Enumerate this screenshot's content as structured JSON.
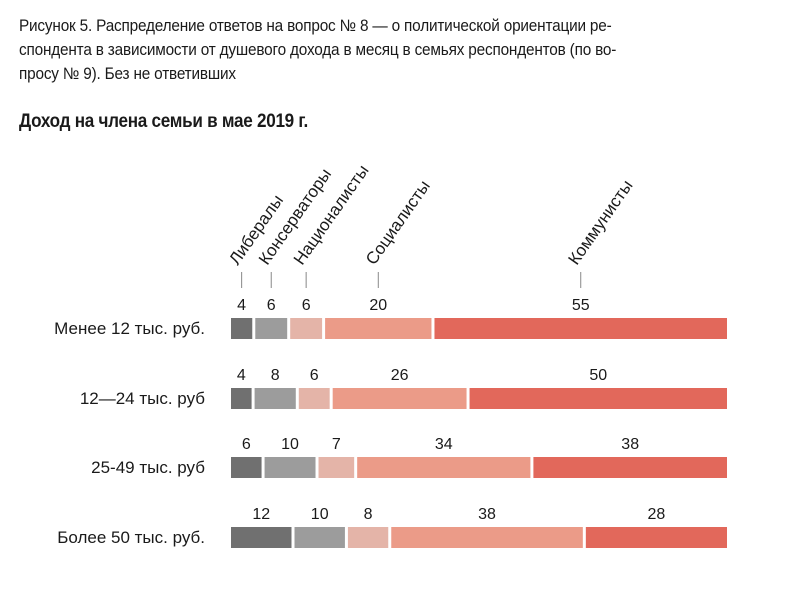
{
  "caption": "Рисунок 5. Распределение ответов на вопрос № 8 — о политической ориентации ре-спондента в зависимости от душевого дохода в месяц в семьях респондентов (по во-просу № 9). Без не ответивших",
  "caption_lines": [
    "Рисунок 5. Распределение ответов на вопрос № 8 — о политической ориентации ре-",
    "спондента в зависимости от душевого дохода в месяц в семьях респондентов (по во-",
    "просу № 9). Без не ответивших"
  ],
  "chart_data": {
    "type": "bar",
    "orientation": "horizontal",
    "stacked": true,
    "title": "Доход на члена семьи в мае 2019 г.",
    "xlabel": "",
    "ylabel": "",
    "grid": false,
    "legend_placement": "top, rotated labels above first bar",
    "categories": [
      "Менее 12 тыс. руб.",
      "12—24 тыс. руб",
      "25-49 тыс. руб",
      "Более 50 тыс. руб."
    ],
    "series": [
      {
        "name": "Либералы",
        "color": "#707070",
        "values": [
          4,
          4,
          6,
          12
        ]
      },
      {
        "name": "Консерваторы",
        "color": "#9c9c9c",
        "values": [
          6,
          8,
          10,
          10
        ]
      },
      {
        "name": "Националисты",
        "color": "#e4b4a8",
        "values": [
          6,
          6,
          7,
          8
        ]
      },
      {
        "name": "Социалисты",
        "color": "#eb9b88",
        "values": [
          20,
          26,
          34,
          38
        ]
      },
      {
        "name": "Коммунисты",
        "color": "#e2685b",
        "values": [
          55,
          50,
          38,
          28
        ]
      }
    ]
  }
}
